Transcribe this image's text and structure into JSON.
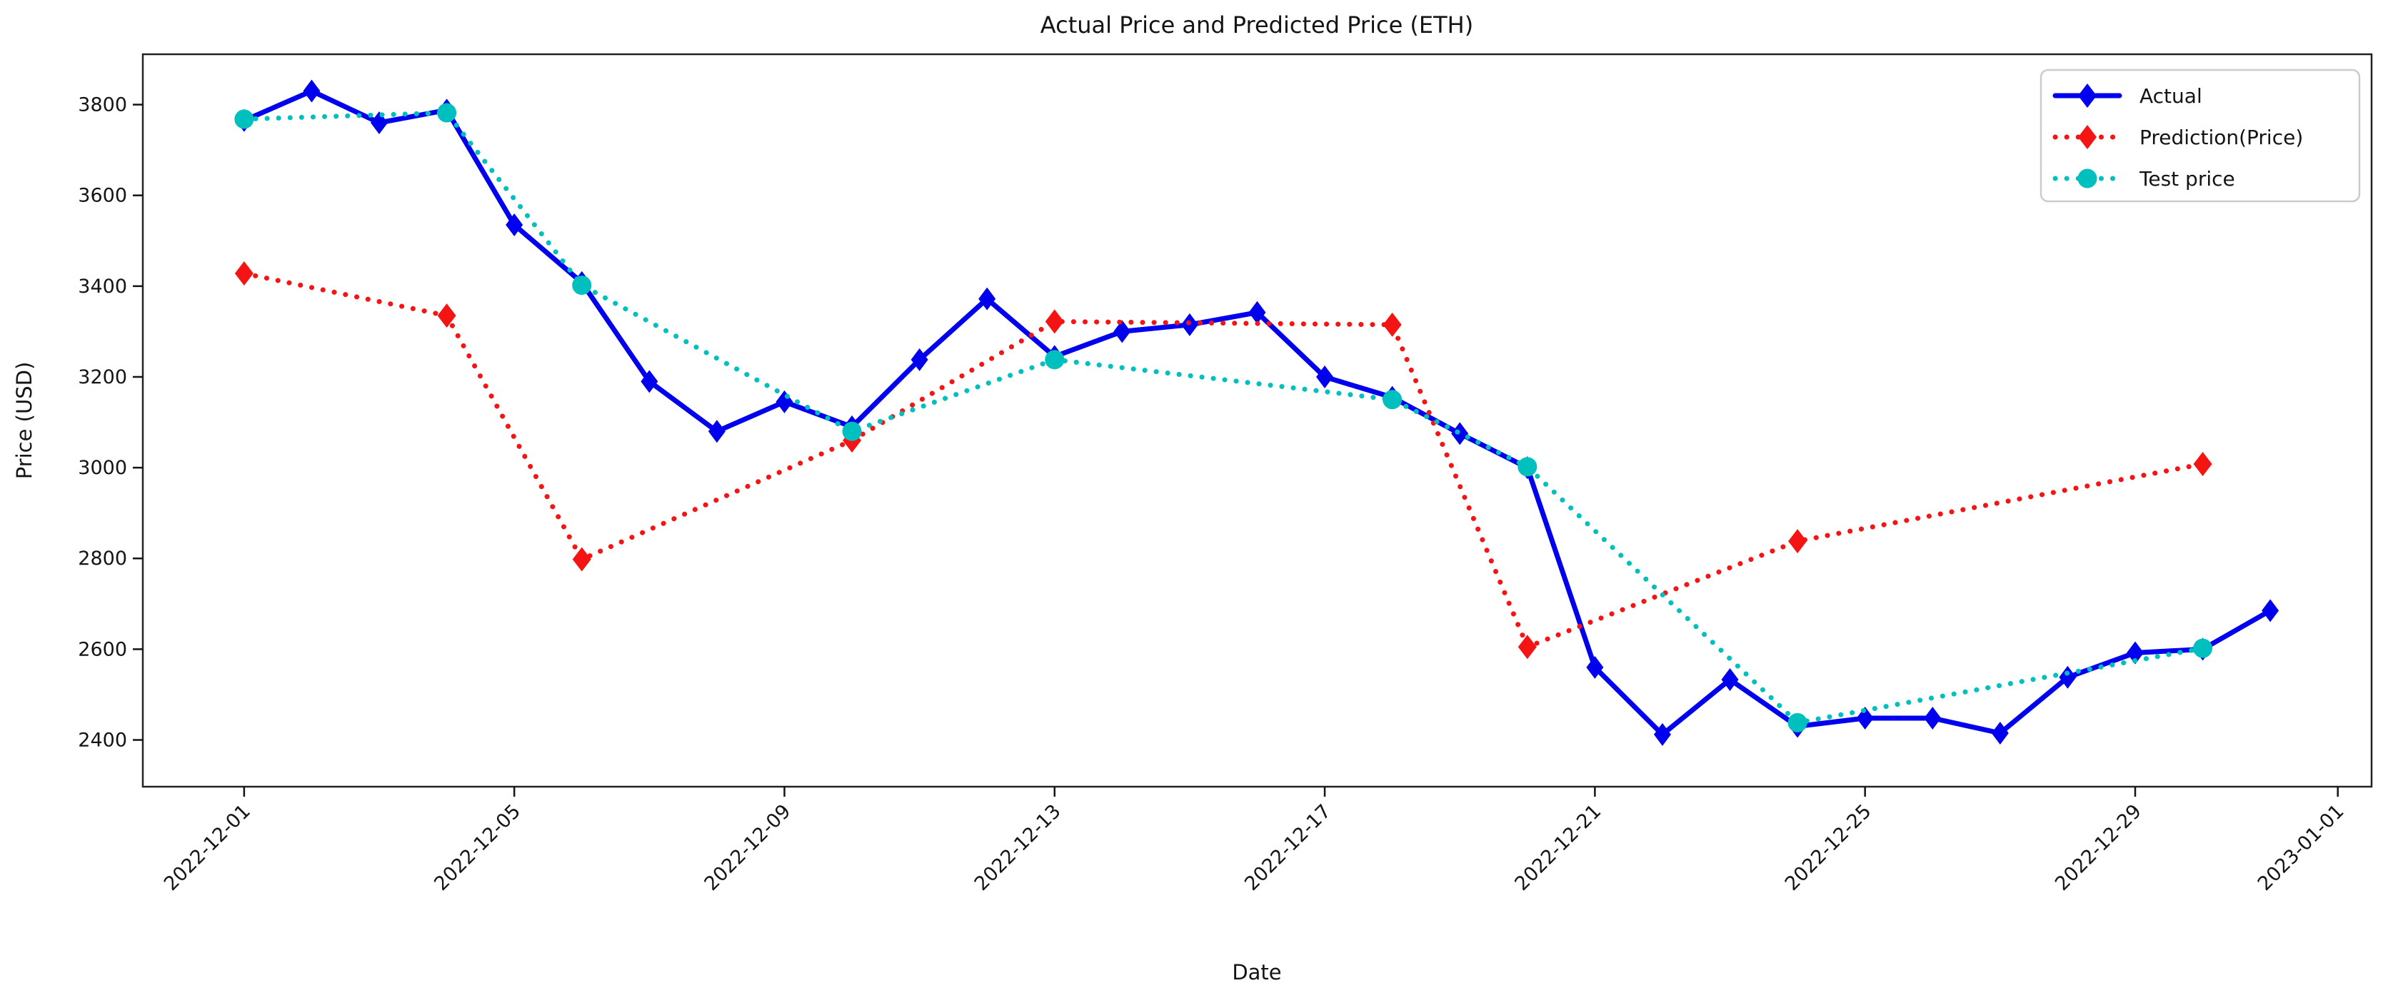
{
  "figure": {
    "background": "#ffffff",
    "frame_color": "#222222",
    "text_color": "#141414"
  },
  "chart_data": {
    "type": "line",
    "title": "Actual Price and Predicted Price (ETH)",
    "xlabel": "Date",
    "ylabel": "Price (USD)",
    "grid": false,
    "legend_position": "upper right",
    "legend_border_color": "#cccccc",
    "x_unit": "days since 2022-12-01",
    "xlim": [
      -1.5,
      31.5
    ],
    "ylim": [
      2297,
      3911
    ],
    "y_ticks": [
      2400,
      2600,
      2800,
      3000,
      3200,
      3400,
      3600,
      3800
    ],
    "x_ticks": [
      {
        "idx": 0,
        "label": "2022-12-01"
      },
      {
        "idx": 4,
        "label": "2022-12-05"
      },
      {
        "idx": 8,
        "label": "2022-12-09"
      },
      {
        "idx": 12,
        "label": "2022-12-13"
      },
      {
        "idx": 16,
        "label": "2022-12-17"
      },
      {
        "idx": 20,
        "label": "2022-12-21"
      },
      {
        "idx": 24,
        "label": "2022-12-25"
      },
      {
        "idx": 28,
        "label": "2022-12-29"
      },
      {
        "idx": 31,
        "label": "2023-01-01"
      }
    ],
    "series": [
      {
        "name": "Actual",
        "color": "#0000ee",
        "style": "solid",
        "marker": "diamond",
        "x": [
          0,
          1,
          2,
          3,
          4,
          5,
          6,
          7,
          8,
          9,
          10,
          11,
          12,
          13,
          14,
          15,
          16,
          17,
          18,
          19,
          20,
          21,
          22,
          23,
          24,
          25,
          26,
          27,
          28,
          29,
          30
        ],
        "dates": [
          "2022-12-01",
          "2022-12-02",
          "2022-12-03",
          "2022-12-04",
          "2022-12-05",
          "2022-12-06",
          "2022-12-07",
          "2022-12-08",
          "2022-12-09",
          "2022-12-10",
          "2022-12-11",
          "2022-12-12",
          "2022-12-13",
          "2022-12-14",
          "2022-12-15",
          "2022-12-16",
          "2022-12-17",
          "2022-12-18",
          "2022-12-19",
          "2022-12-20",
          "2022-12-21",
          "2022-12-22",
          "2022-12-23",
          "2022-12-24",
          "2022-12-25",
          "2022-12-26",
          "2022-12-27",
          "2022-12-28",
          "2022-12-29",
          "2022-12-30",
          "2022-12-31"
        ],
        "values": [
          3765,
          3830,
          3760,
          3788,
          3535,
          3408,
          3190,
          3080,
          3145,
          3090,
          3238,
          3372,
          3245,
          3300,
          3315,
          3342,
          3200,
          3155,
          3075,
          3000,
          2560,
          2412,
          2533,
          2430,
          2448,
          2448,
          2415,
          2538,
          2592,
          2600,
          2685
        ]
      },
      {
        "name": "Prediction(Price)",
        "color": "#f51414",
        "style": "dotted",
        "marker": "diamond",
        "x": [
          0,
          3,
          5,
          9,
          12,
          17,
          19,
          23,
          29
        ],
        "dates": [
          "2022-12-01",
          "2022-12-04",
          "2022-12-06",
          "2022-12-10",
          "2022-12-13",
          "2022-12-18",
          "2022-12-20",
          "2022-12-24",
          "2022-12-30"
        ],
        "values": [
          3428,
          3335,
          2798,
          3060,
          3322,
          3315,
          2605,
          2838,
          3008
        ]
      },
      {
        "name": "Test price",
        "color": "#00bfbf",
        "style": "dotted",
        "marker": "circle",
        "x": [
          0,
          3,
          5,
          9,
          12,
          17,
          19,
          23,
          29
        ],
        "dates": [
          "2022-12-01",
          "2022-12-04",
          "2022-12-06",
          "2022-12-10",
          "2022-12-13",
          "2022-12-18",
          "2022-12-20",
          "2022-12-24",
          "2022-12-30"
        ],
        "values": [
          3768,
          3782,
          3402,
          3080,
          3238,
          3150,
          3002,
          2438,
          2602
        ]
      }
    ]
  }
}
